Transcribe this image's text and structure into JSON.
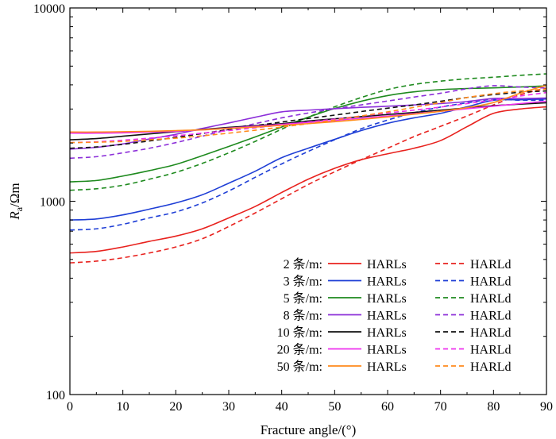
{
  "chart_data": {
    "type": "line",
    "title": "",
    "xlabel": "Fracture angle/(°)",
    "ylabel": {
      "main": "R",
      "sub": "a",
      "rest": "/Ωm"
    },
    "x_ticks": [
      0,
      10,
      20,
      30,
      40,
      50,
      60,
      70,
      80,
      90
    ],
    "x_tick_labels": [
      "0",
      "10",
      "20",
      "30",
      "40",
      "50",
      "60",
      "70",
      "80",
      "90"
    ],
    "y_ticks": [
      100,
      1000,
      10000
    ],
    "y_tick_labels": [
      "100",
      "1000",
      "10000"
    ],
    "xlim": [
      0,
      90
    ],
    "ylim": [
      100,
      10000
    ],
    "y_scale": "log",
    "grid": false,
    "legend_position": "bottom-right",
    "legend_rows": [
      {
        "label": "2 条/m:",
        "solid": "HARLs",
        "dashed": "HARLd",
        "color": "#e8221e"
      },
      {
        "label": "3 条/m:",
        "solid": "HARLs",
        "dashed": "HARLd",
        "color": "#1f3fd6"
      },
      {
        "label": "5 条/m:",
        "solid": "HARLs",
        "dashed": "HARLd",
        "color": "#1e8a1e"
      },
      {
        "label": "8 条/m:",
        "solid": "HARLs",
        "dashed": "HARLd",
        "color": "#8c2fd9"
      },
      {
        "label": "10 条/m:",
        "solid": "HARLs",
        "dashed": "HARLd",
        "color": "#111111"
      },
      {
        "label": "20 条/m:",
        "solid": "HARLs",
        "dashed": "HARLd",
        "color": "#ee2fee"
      },
      {
        "label": "50 条/m:",
        "solid": "HARLs",
        "dashed": "HARLd",
        "color": "#ff8a1c"
      }
    ],
    "x": [
      0,
      5,
      10,
      15,
      20,
      25,
      30,
      35,
      40,
      45,
      50,
      55,
      60,
      65,
      70,
      75,
      80,
      85,
      90
    ],
    "series": [
      {
        "name": "2 条/m: HARLs",
        "color": "#e8221e",
        "dash": false,
        "values": [
          540,
          550,
          580,
          620,
          660,
          720,
          820,
          940,
          1110,
          1300,
          1480,
          1640,
          1760,
          1880,
          2060,
          2430,
          2850,
          3000,
          3080
        ]
      },
      {
        "name": "2 条/m: HARLd",
        "color": "#e8221e",
        "dash": true,
        "values": [
          480,
          490,
          510,
          540,
          580,
          640,
          740,
          870,
          1030,
          1220,
          1420,
          1640,
          1880,
          2160,
          2440,
          2760,
          3150,
          3550,
          3850
        ]
      },
      {
        "name": "3 条/m: HARLs",
        "color": "#1f3fd6",
        "dash": false,
        "values": [
          800,
          810,
          850,
          910,
          980,
          1080,
          1240,
          1430,
          1680,
          1880,
          2090,
          2320,
          2530,
          2700,
          2850,
          3080,
          3330,
          3350,
          3380
        ]
      },
      {
        "name": "3 条/m: HARLd",
        "color": "#1f3fd6",
        "dash": true,
        "values": [
          710,
          720,
          760,
          820,
          880,
          980,
          1130,
          1330,
          1560,
          1810,
          2080,
          2370,
          2630,
          2870,
          3070,
          3230,
          3370,
          3330,
          3330
        ]
      },
      {
        "name": "5 条/m: HARLs",
        "color": "#1e8a1e",
        "dash": false,
        "values": [
          1260,
          1280,
          1350,
          1440,
          1550,
          1720,
          1920,
          2150,
          2420,
          2720,
          3020,
          3290,
          3520,
          3680,
          3780,
          3830,
          3860,
          3900,
          3950
        ]
      },
      {
        "name": "5 条/m: HARLd",
        "color": "#1e8a1e",
        "dash": true,
        "values": [
          1140,
          1160,
          1210,
          1300,
          1410,
          1570,
          1780,
          2040,
          2360,
          2720,
          3080,
          3440,
          3780,
          4020,
          4180,
          4300,
          4380,
          4480,
          4560
        ]
      },
      {
        "name": "8 条/m: HARLs",
        "color": "#8c2fd9",
        "dash": false,
        "values": [
          1860,
          1900,
          1980,
          2100,
          2220,
          2380,
          2540,
          2720,
          2900,
          2960,
          3010,
          3060,
          3100,
          3150,
          3200,
          3280,
          3400,
          3400,
          3420
        ]
      },
      {
        "name": "8 条/m: HARLd",
        "color": "#8c2fd9",
        "dash": true,
        "values": [
          1670,
          1700,
          1780,
          1880,
          2010,
          2170,
          2350,
          2520,
          2700,
          2860,
          3010,
          3150,
          3300,
          3460,
          3620,
          3820,
          3960,
          3900,
          3850
        ]
      },
      {
        "name": "10 条/m: HARLs",
        "color": "#111111",
        "dash": false,
        "values": [
          2080,
          2110,
          2170,
          2230,
          2290,
          2350,
          2410,
          2460,
          2520,
          2600,
          2670,
          2740,
          2810,
          2880,
          2960,
          3040,
          3120,
          3180,
          3230
        ]
      },
      {
        "name": "10 条/m: HARLd",
        "color": "#111111",
        "dash": true,
        "values": [
          1880,
          1910,
          1970,
          2050,
          2140,
          2240,
          2350,
          2460,
          2570,
          2680,
          2790,
          2910,
          3030,
          3150,
          3290,
          3440,
          3560,
          3660,
          3720
        ]
      },
      {
        "name": "20 条/m: HARLs",
        "color": "#ee2fee",
        "dash": false,
        "values": [
          2250,
          2250,
          2260,
          2280,
          2300,
          2340,
          2390,
          2440,
          2500,
          2560,
          2620,
          2690,
          2760,
          2840,
          2920,
          3010,
          3100,
          3200,
          3290
        ]
      },
      {
        "name": "20 条/m: HARLd",
        "color": "#ee2fee",
        "dash": true,
        "values": [
          2010,
          2030,
          2070,
          2120,
          2180,
          2250,
          2320,
          2400,
          2480,
          2570,
          2660,
          2760,
          2860,
          2960,
          3070,
          3200,
          3340,
          3500,
          3650
        ]
      },
      {
        "name": "50 条/m: HARLs",
        "color": "#ff8a1c",
        "dash": false,
        "values": [
          2280,
          2280,
          2290,
          2300,
          2320,
          2340,
          2380,
          2420,
          2470,
          2520,
          2580,
          2650,
          2730,
          2820,
          2920,
          3050,
          3240,
          3620,
          3980
        ]
      },
      {
        "name": "50 条/m: HARLd",
        "color": "#ff8a1c",
        "dash": true,
        "values": [
          2010,
          2020,
          2040,
          2080,
          2120,
          2180,
          2250,
          2330,
          2420,
          2520,
          2630,
          2760,
          2900,
          3060,
          3240,
          3440,
          3600,
          3720,
          3800
        ]
      }
    ]
  }
}
